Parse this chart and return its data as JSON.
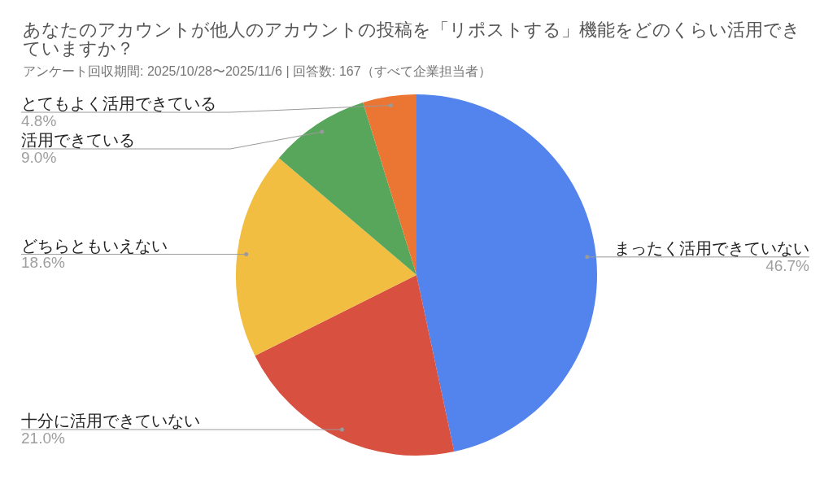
{
  "chart_data": {
    "type": "pie",
    "title": "あなたのアカウントが他人のアカウントの投稿を「リポストする」機能をどのくらい活用できていますか？",
    "subtitle": "アンケート回収期間: 2025/10/28〜2025/11/6 | 回答数: 167（すべて企業担当者）",
    "categories": [
      "まったく活用できていない",
      "十分に活用できていない",
      "どちらともいえない",
      "活用できている",
      "とてもよく活用できている"
    ],
    "values": [
      46.7,
      21.0,
      18.6,
      9.0,
      4.8
    ],
    "value_labels": [
      "46.7%",
      "21.0%",
      "18.6%",
      "9.0%",
      "4.8%"
    ],
    "colors": [
      "#5383ec",
      "#d85140",
      "#f1be42",
      "#58a65c",
      "#eb7532"
    ],
    "legend": false
  }
}
